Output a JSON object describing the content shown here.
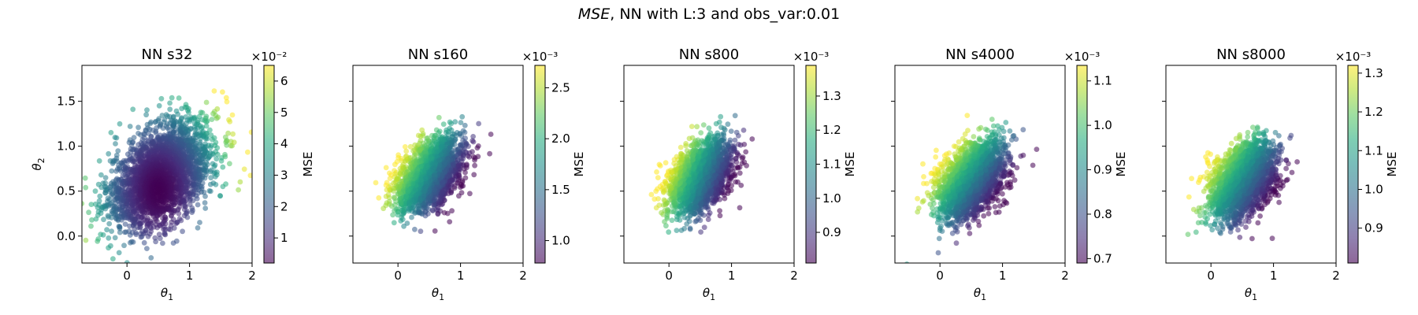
{
  "figure": {
    "title_prefix": "MSE",
    "title_rest": ", NN with L:3 and obs_var:0.01"
  },
  "colorbar_label": "MSE",
  "colormap": {
    "name": "viridis",
    "stops": [
      "#440154",
      "#472d7b",
      "#3b528b",
      "#2c728e",
      "#21918c",
      "#28ae80",
      "#5ec962",
      "#addc30",
      "#fde725"
    ]
  },
  "chart_data": [
    {
      "type": "scatter",
      "title": "NN s32",
      "xlabel": "θ1",
      "ylabel": "θ2",
      "xlim": [
        -0.72,
        2.0
      ],
      "ylim": [
        -0.3,
        1.9
      ],
      "x_ticks": [
        0,
        1,
        2
      ],
      "y_ticks": [
        0.0,
        0.5,
        1.0,
        1.5
      ],
      "cloud": {
        "center": [
          0.55,
          0.68
        ],
        "std": [
          0.42,
          0.3
        ],
        "corr": 0.45,
        "points": 2600
      },
      "color_mapping": {
        "mode": "distance",
        "center": [
          0.5,
          0.5
        ]
      },
      "colorbar": {
        "range": [
          0.2,
          6.5
        ],
        "ticks": [
          1,
          2,
          3,
          4,
          5,
          6
        ],
        "exponent": "×10⁻²"
      }
    },
    {
      "type": "scatter",
      "title": "NN s160",
      "xlabel": "θ1",
      "ylabel": "",
      "xlim": [
        -0.72,
        2.0
      ],
      "ylim": [
        -0.3,
        1.9
      ],
      "x_ticks": [
        0,
        1,
        2
      ],
      "y_ticks": [
        0.0,
        0.5,
        1.0,
        1.5
      ],
      "cloud": {
        "center": [
          0.5,
          0.68
        ],
        "std": [
          0.26,
          0.2
        ],
        "corr": 0.45,
        "points": 2200
      },
      "color_mapping": {
        "mode": "gradient",
        "direction": [
          -0.8,
          0.6
        ]
      },
      "colorbar": {
        "range": [
          0.78,
          2.72
        ],
        "ticks": [
          1.0,
          1.5,
          2.0,
          2.5
        ],
        "exponent": "×10⁻³"
      }
    },
    {
      "type": "scatter",
      "title": "NN s800",
      "xlabel": "θ1",
      "ylabel": "",
      "xlim": [
        -0.72,
        2.0
      ],
      "ylim": [
        -0.3,
        1.9
      ],
      "x_ticks": [
        0,
        1,
        2
      ],
      "y_ticks": [
        0.0,
        0.5,
        1.0,
        1.5
      ],
      "cloud": {
        "center": [
          0.5,
          0.65
        ],
        "std": [
          0.25,
          0.2
        ],
        "corr": 0.45,
        "points": 2200
      },
      "color_mapping": {
        "mode": "gradient",
        "direction": [
          -0.85,
          0.5
        ]
      },
      "colorbar": {
        "range": [
          0.81,
          1.39
        ],
        "ticks": [
          0.9,
          1.0,
          1.1,
          1.2,
          1.3
        ],
        "exponent": "×10⁻³"
      }
    },
    {
      "type": "scatter",
      "title": "NN s4000",
      "xlabel": "θ1",
      "ylabel": "",
      "xlim": [
        -0.72,
        2.0
      ],
      "ylim": [
        -0.3,
        1.9
      ],
      "x_ticks": [
        0,
        1,
        2
      ],
      "y_ticks": [
        0.0,
        0.5,
        1.0,
        1.5
      ],
      "cloud": {
        "center": [
          0.5,
          0.62
        ],
        "std": [
          0.27,
          0.22
        ],
        "corr": 0.4,
        "points": 2200
      },
      "color_mapping": {
        "mode": "gradient",
        "direction": [
          -0.7,
          0.7
        ]
      },
      "colorbar": {
        "range": [
          0.69,
          1.135
        ],
        "ticks": [
          0.7,
          0.8,
          0.9,
          1.0,
          1.1
        ],
        "exponent": "×10⁻³"
      }
    },
    {
      "type": "scatter",
      "title": "NN s8000",
      "xlabel": "θ1",
      "ylabel": "",
      "xlim": [
        -0.72,
        2.0
      ],
      "ylim": [
        -0.3,
        1.9
      ],
      "x_ticks": [
        0,
        1,
        2
      ],
      "y_ticks": [
        0.0,
        0.5,
        1.0,
        1.5
      ],
      "cloud": {
        "center": [
          0.5,
          0.62
        ],
        "std": [
          0.26,
          0.21
        ],
        "corr": 0.4,
        "points": 2200
      },
      "color_mapping": {
        "mode": "gradient",
        "direction": [
          -0.75,
          0.65
        ]
      },
      "colorbar": {
        "range": [
          0.81,
          1.32
        ],
        "ticks": [
          0.9,
          1.0,
          1.1,
          1.2,
          1.3
        ],
        "exponent": "×10⁻³"
      }
    }
  ]
}
